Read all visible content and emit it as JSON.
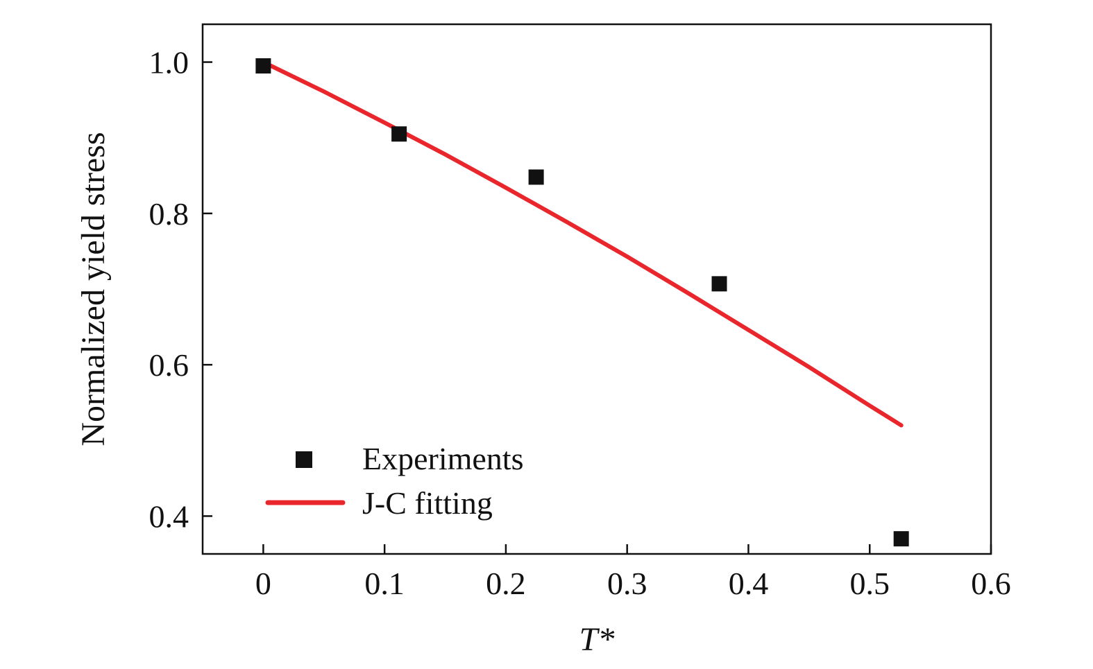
{
  "chart_data": {
    "type": "scatter",
    "title": "",
    "xlabel": "T*",
    "ylabel": "Normalized yield stress",
    "xlim": [
      -0.05,
      0.6
    ],
    "ylim": [
      0.35,
      1.05
    ],
    "xticks": [
      0,
      0.1,
      0.2,
      0.3,
      0.4,
      0.5,
      0.6
    ],
    "xtick_labels": [
      "0",
      "0.1",
      "0.2",
      "0.3",
      "0.4",
      "0.5",
      "0.6"
    ],
    "yticks": [
      0.4,
      0.6,
      0.8,
      1.0
    ],
    "ytick_labels": [
      "0.4",
      "0.6",
      "0.8",
      "1.0"
    ],
    "grid": false,
    "legend_position": "bottom-left",
    "series": [
      {
        "name": "Experiments",
        "kind": "scatter",
        "marker": "square",
        "color": "#111111",
        "x": [
          0,
          0.112,
          0.225,
          0.376,
          0.526
        ],
        "y": [
          0.995,
          0.905,
          0.848,
          0.707,
          0.37
        ]
      },
      {
        "name": "J-C fitting",
        "kind": "line",
        "color": "#e8262c",
        "x": [
          0,
          0.05,
          0.1,
          0.15,
          0.2,
          0.25,
          0.3,
          0.35,
          0.4,
          0.45,
          0.5,
          0.526
        ],
        "y": [
          1.0,
          0.961,
          0.92,
          0.878,
          0.834,
          0.789,
          0.743,
          0.695,
          0.646,
          0.597,
          0.546,
          0.52
        ]
      }
    ]
  }
}
